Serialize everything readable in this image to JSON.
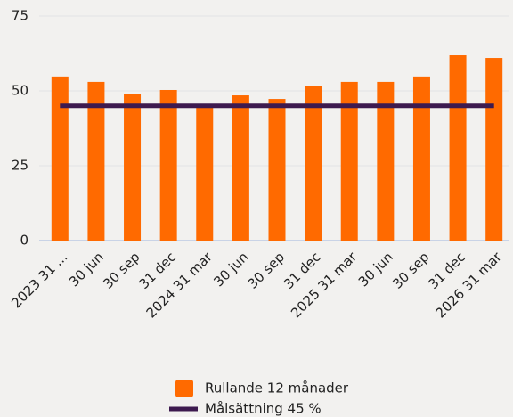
{
  "chart_data": {
    "type": "bar",
    "categories": [
      "2023 31 ...",
      "30 jun",
      "30 sep",
      "31 dec",
      "2024 31 mar",
      "30 jun",
      "30 sep",
      "31 dec",
      "2025 31 mar",
      "30 jun",
      "30 sep",
      "31 dec",
      "2026 31 mar"
    ],
    "series": [
      {
        "name": "Rullande 12 månader",
        "type": "bar",
        "color": "#ff6a00",
        "values": [
          54.8,
          53,
          49,
          50.3,
          45.5,
          48.5,
          47.3,
          51.5,
          53,
          53,
          54.8,
          61.9,
          61
        ]
      },
      {
        "name": "Målsättning 45 %",
        "type": "line",
        "color": "#3d1a4f",
        "values": [
          45,
          45,
          45,
          45,
          45,
          45,
          45,
          45,
          45,
          45,
          45,
          45,
          45
        ]
      }
    ],
    "ylim": [
      0,
      75
    ],
    "yticks": [
      0,
      25,
      50,
      75
    ],
    "grid": true,
    "legend": "bottom"
  }
}
